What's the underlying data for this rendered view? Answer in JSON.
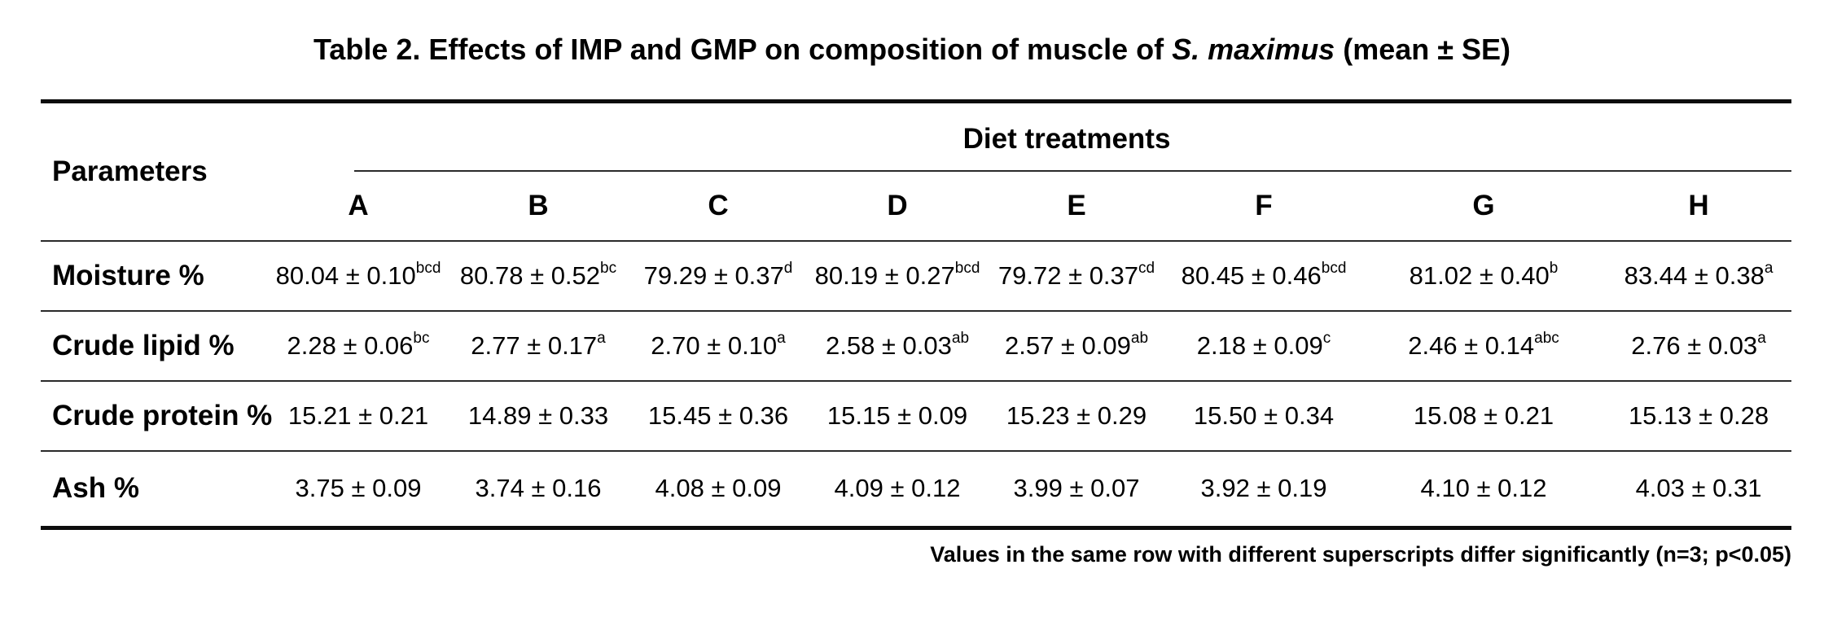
{
  "title": {
    "prefix": "Table 2. Effects of IMP and GMP on composition of muscle of ",
    "species": "S. maximus",
    "suffix": " (mean ± SE)"
  },
  "table": {
    "param_header": "Parameters",
    "group_header": "Diet treatments",
    "columns": [
      "A",
      "B",
      "C",
      "D",
      "E",
      "F",
      "G",
      "H"
    ],
    "rows": [
      {
        "label": "Moisture %",
        "cells": [
          {
            "v": "80.04 ± 0.10",
            "sup": "bcd"
          },
          {
            "v": "80.78 ± 0.52",
            "sup": "bc"
          },
          {
            "v": "79.29 ± 0.37",
            "sup": "d"
          },
          {
            "v": "80.19 ± 0.27",
            "sup": "bcd"
          },
          {
            "v": "79.72 ± 0.37",
            "sup": "cd"
          },
          {
            "v": "80.45 ± 0.46",
            "sup": "bcd"
          },
          {
            "v": "81.02 ± 0.40",
            "sup": "b"
          },
          {
            "v": "83.44 ± 0.38",
            "sup": "a"
          }
        ]
      },
      {
        "label": "Crude lipid %",
        "cells": [
          {
            "v": "2.28 ± 0.06",
            "sup": "bc"
          },
          {
            "v": "2.77 ± 0.17",
            "sup": "a"
          },
          {
            "v": "2.70 ± 0.10",
            "sup": "a"
          },
          {
            "v": "2.58 ± 0.03",
            "sup": "ab"
          },
          {
            "v": "2.57 ± 0.09",
            "sup": "ab"
          },
          {
            "v": "2.18 ± 0.09",
            "sup": "c"
          },
          {
            "v": "2.46 ± 0.14",
            "sup": "abc"
          },
          {
            "v": "2.76 ± 0.03",
            "sup": "a"
          }
        ]
      },
      {
        "label": "Crude protein %",
        "cells": [
          {
            "v": "15.21 ± 0.21",
            "sup": ""
          },
          {
            "v": "14.89 ± 0.33",
            "sup": ""
          },
          {
            "v": "15.45 ± 0.36",
            "sup": ""
          },
          {
            "v": "15.15 ± 0.09",
            "sup": ""
          },
          {
            "v": "15.23 ± 0.29",
            "sup": ""
          },
          {
            "v": "15.50 ± 0.34",
            "sup": ""
          },
          {
            "v": "15.08 ± 0.21",
            "sup": ""
          },
          {
            "v": "15.13 ± 0.28",
            "sup": ""
          }
        ]
      },
      {
        "label": "Ash %",
        "cells": [
          {
            "v": "3.75 ± 0.09",
            "sup": ""
          },
          {
            "v": "3.74 ± 0.16",
            "sup": ""
          },
          {
            "v": "4.08 ± 0.09",
            "sup": ""
          },
          {
            "v": "4.09 ± 0.12",
            "sup": ""
          },
          {
            "v": "3.99 ± 0.07",
            "sup": ""
          },
          {
            "v": "3.92 ± 0.19",
            "sup": ""
          },
          {
            "v": "4.10 ± 0.12",
            "sup": ""
          },
          {
            "v": "4.03 ± 0.31",
            "sup": ""
          }
        ]
      }
    ]
  },
  "footnote": "Values in the same row with different superscripts differ significantly (n=3; p<0.05)",
  "colors": {
    "text": "#000000",
    "thick_rule": "#0d0d0d",
    "thin_rule": "#2a2a2a",
    "background": "#ffffff"
  }
}
